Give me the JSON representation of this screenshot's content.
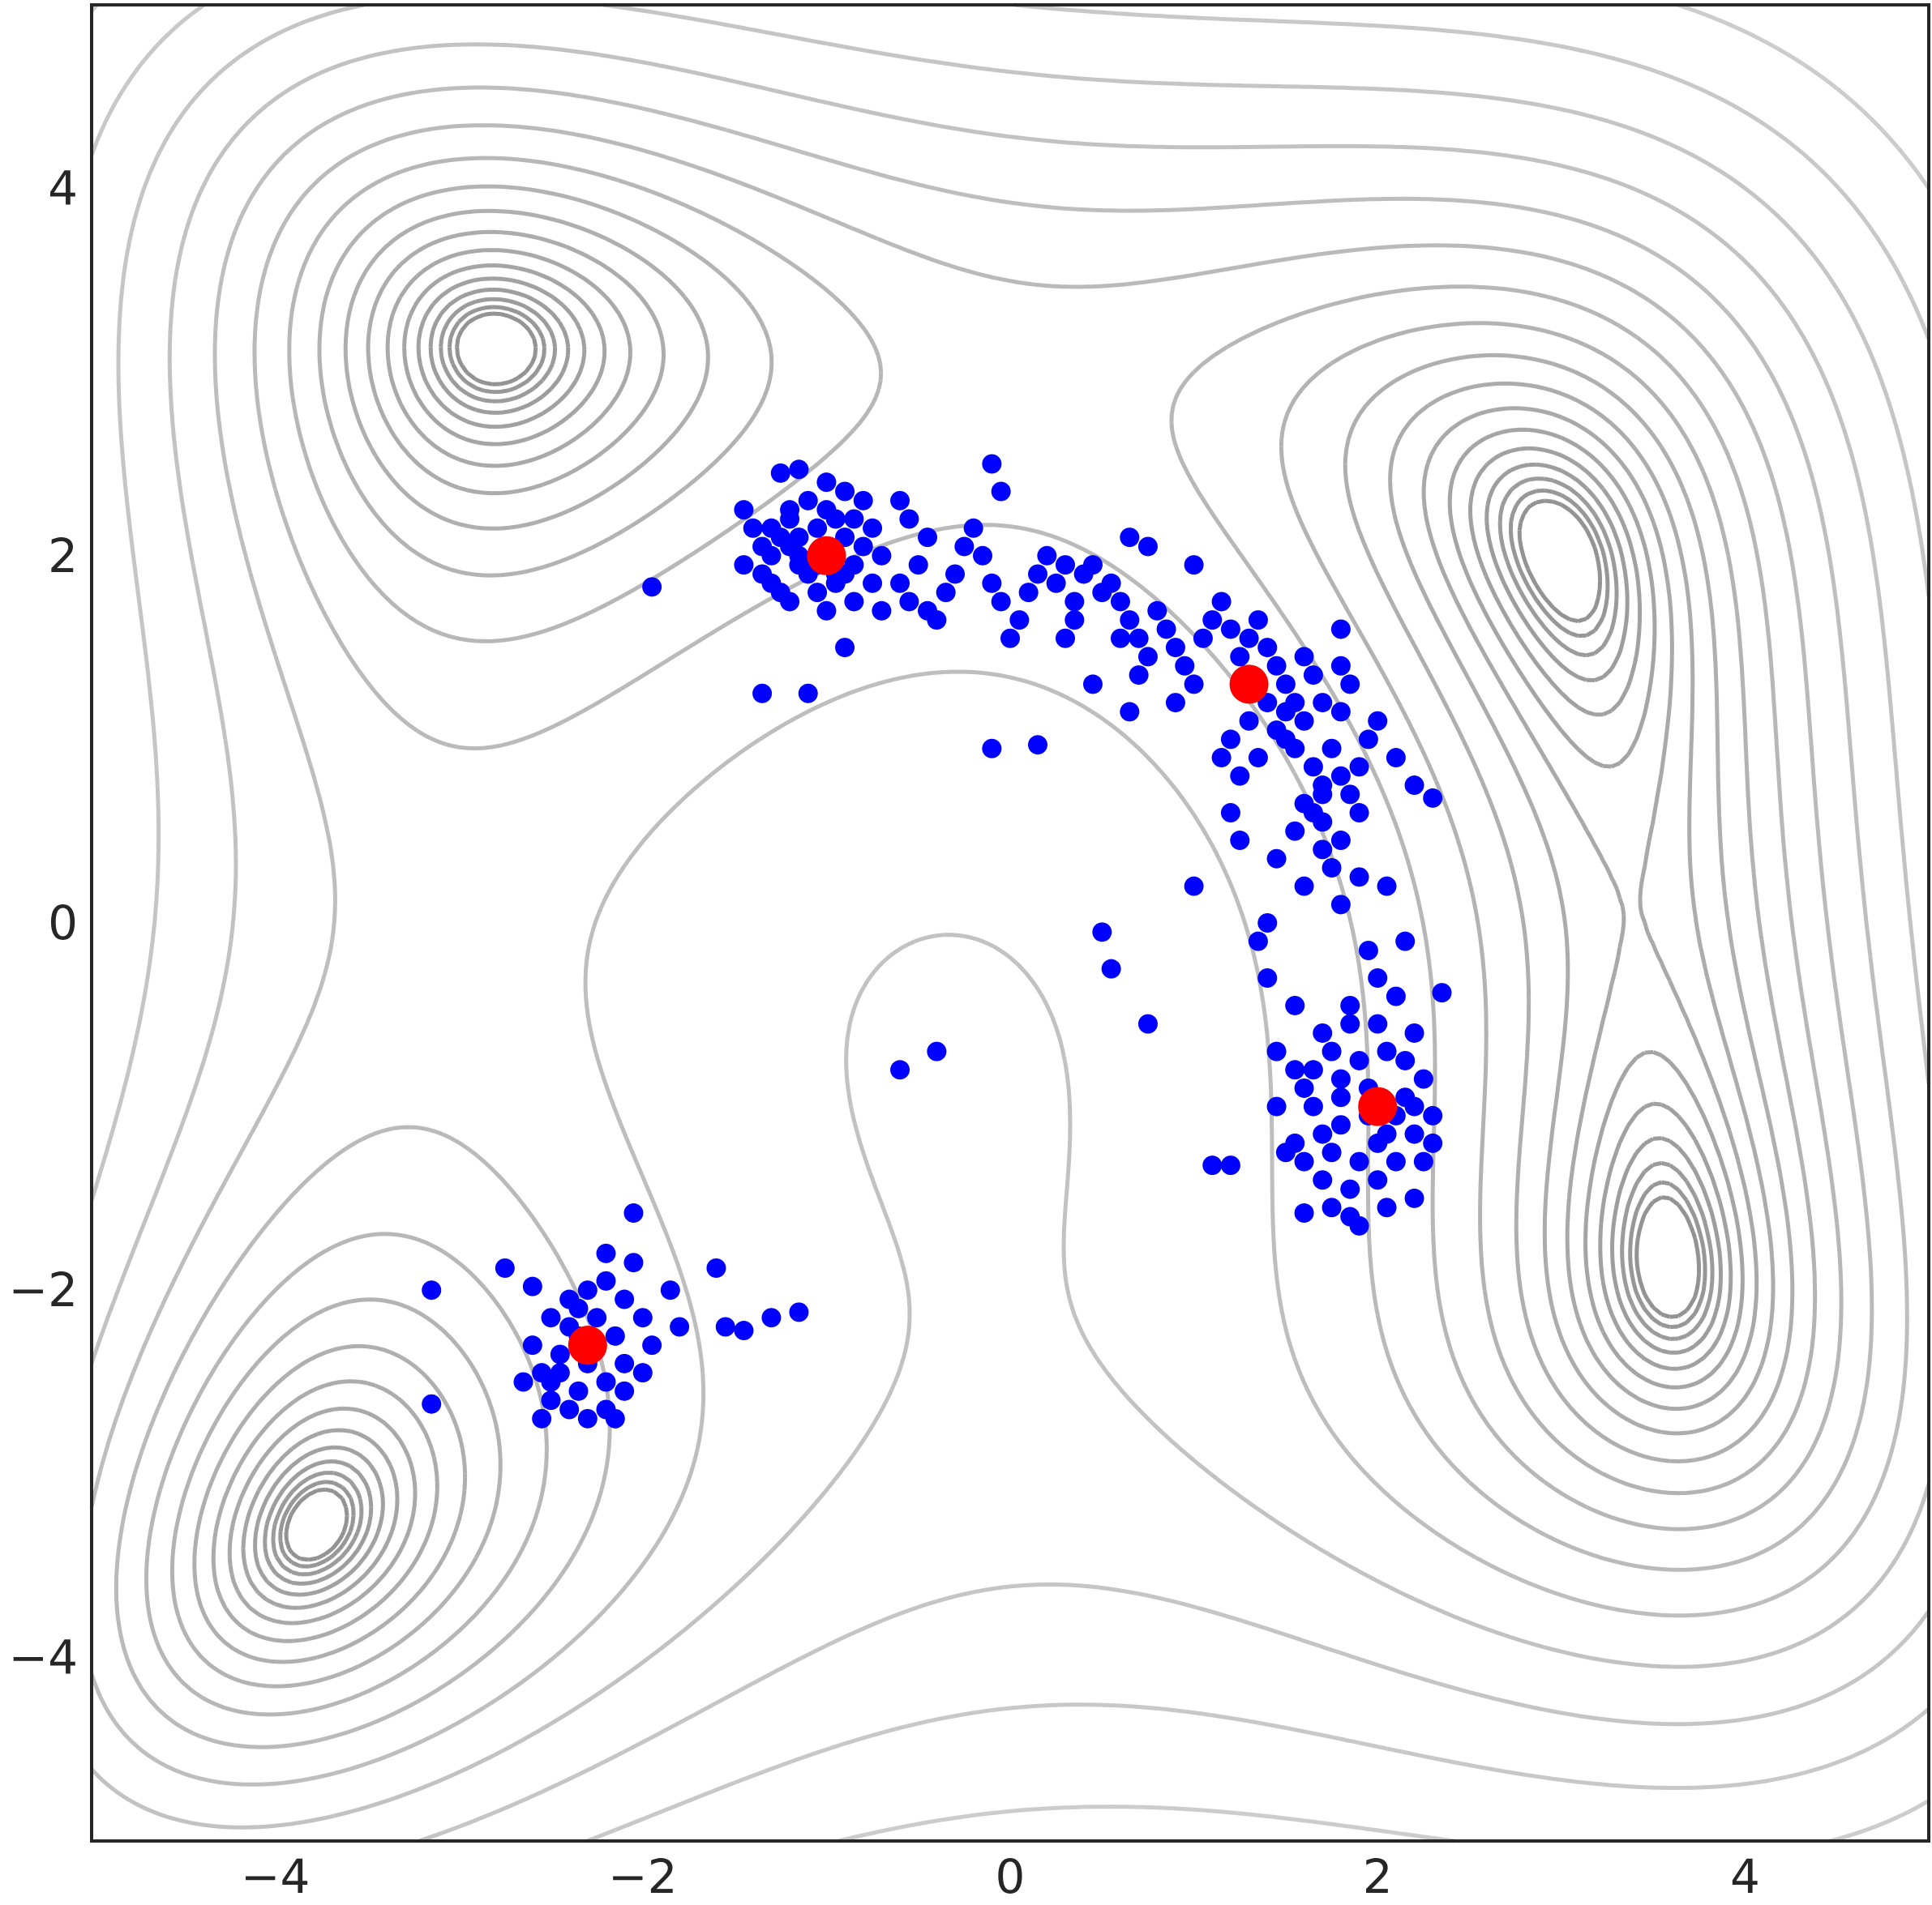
{
  "chart_data": {
    "type": "scatter",
    "title": "",
    "xlabel": "",
    "ylabel": "",
    "xlim": [
      -5,
      5
    ],
    "ylim": [
      -5,
      5
    ],
    "grid": false,
    "xticks": [
      -4,
      -2,
      0,
      2,
      4
    ],
    "yticks": [
      -4,
      -2,
      0,
      2,
      4
    ],
    "xtick_labels": [
      "−4",
      "−2",
      "0",
      "2",
      "4"
    ],
    "ytick_labels": [
      "−4",
      "−2",
      "0",
      "2",
      "4"
    ],
    "background_contours": "Himmelblau function level curves (grey)",
    "colors": {
      "samples": "#0000ff",
      "minima": "#ff0000",
      "contours": "#808080",
      "axes": "#262626"
    },
    "minima": [
      {
        "x": -1.0,
        "y": 2.0
      },
      {
        "x": 1.3,
        "y": 1.3
      },
      {
        "x": 2.0,
        "y": -1.0
      },
      {
        "x": -2.3,
        "y": -2.3
      }
    ],
    "series": [
      {
        "points": [
          [
            -0.4,
            -0.7
          ],
          [
            -0.6,
            -0.8
          ],
          [
            0.5,
            -0.05
          ],
          [
            0.55,
            -0.25
          ],
          [
            0.75,
            -0.55
          ],
          [
            1.0,
            0.2
          ],
          [
            -1.35,
            1.25
          ],
          [
            -1.1,
            1.25
          ],
          [
            -0.1,
            0.95
          ],
          [
            0.15,
            0.97
          ],
          [
            -0.1,
            2.5
          ],
          [
            -0.05,
            2.35
          ],
          [
            -1.95,
            1.83
          ],
          [
            -1.15,
            2.47
          ],
          [
            -1.25,
            2.45
          ],
          [
            2.3,
            0.68
          ],
          [
            2.2,
            0.75
          ],
          [
            2.35,
            -0.38
          ],
          [
            1.1,
            -1.32
          ],
          [
            1.2,
            -1.32
          ],
          [
            1.6,
            -1.58
          ],
          [
            -3.15,
            -2.0
          ],
          [
            -3.15,
            -2.62
          ],
          [
            -2.75,
            -1.88
          ],
          [
            -2.6,
            -1.98
          ],
          [
            -2.05,
            -1.58
          ],
          [
            -1.6,
            -1.88
          ],
          [
            -1.55,
            -2.2
          ],
          [
            -1.45,
            -2.22
          ],
          [
            -1.3,
            -2.15
          ],
          [
            -1.15,
            -2.12
          ],
          [
            0.3,
            1.55
          ],
          [
            0.6,
            1.55
          ],
          [
            0.3,
            1.95
          ],
          [
            0.0,
            1.55
          ],
          [
            0.5,
            1.8
          ],
          [
            -0.4,
            1.65
          ],
          [
            -0.7,
            1.7
          ],
          [
            -0.9,
            1.5
          ],
          [
            1.5,
            1.0
          ],
          [
            1.7,
            0.75
          ],
          [
            1.45,
            0.35
          ],
          [
            1.8,
            0.1
          ],
          [
            2.15,
            -0.1
          ],
          [
            2.0,
            -0.3
          ],
          [
            1.55,
            -0.45
          ],
          [
            1.45,
            -0.7
          ],
          [
            1.6,
            -0.9
          ],
          [
            2.3,
            -1.2
          ],
          [
            1.0,
            1.95
          ],
          [
            0.75,
            2.05
          ],
          [
            0.65,
            2.1
          ],
          [
            0.35,
            1.65
          ],
          [
            0.45,
            1.3
          ],
          [
            0.65,
            1.15
          ],
          [
            0.9,
            1.2
          ],
          [
            1.2,
            0.6
          ],
          [
            1.25,
            0.45
          ],
          [
            1.8,
            1.6
          ],
          [
            1.6,
            1.45
          ],
          [
            1.8,
            1.4
          ],
          [
            2.0,
            1.1
          ],
          [
            2.1,
            0.9
          ],
          [
            1.9,
            0.6
          ],
          [
            1.7,
            0.4
          ],
          [
            1.9,
            0.25
          ],
          [
            2.05,
            0.2
          ],
          [
            1.6,
            0.2
          ],
          [
            1.4,
            0.0
          ],
          [
            1.35,
            -0.1
          ],
          [
            1.4,
            -0.3
          ],
          [
            2.2,
            -0.6
          ],
          [
            2.25,
            -0.85
          ],
          [
            2.3,
            -1.05
          ],
          [
            2.25,
            -1.3
          ],
          [
            2.2,
            -1.5
          ],
          [
            2.05,
            -1.55
          ],
          [
            1.9,
            -1.65
          ],
          [
            1.85,
            -1.6
          ],
          [
            1.75,
            -1.55
          ],
          [
            1.7,
            -1.4
          ],
          [
            1.6,
            -1.3
          ],
          [
            1.5,
            -1.25
          ],
          [
            1.45,
            -1.0
          ],
          [
            1.55,
            -0.8
          ],
          [
            1.7,
            -0.6
          ],
          [
            1.85,
            -0.45
          ],
          [
            1.95,
            -0.15
          ],
          [
            2.1,
            -0.4
          ],
          [
            2.05,
            -0.7
          ],
          [
            1.95,
            -0.9
          ],
          [
            1.8,
            -1.1
          ],
          [
            1.9,
            -1.3
          ],
          [
            2.1,
            -1.3
          ],
          [
            2.2,
            -1.15
          ],
          [
            2.1,
            -1.05
          ],
          [
            1.8,
            -0.85
          ],
          [
            1.65,
            -1.0
          ],
          [
            1.55,
            -1.2
          ],
          [
            1.75,
            -1.25
          ],
          [
            2.0,
            -1.2
          ],
          [
            2.15,
            -0.95
          ],
          [
            1.9,
            -0.75
          ],
          [
            1.75,
            -0.7
          ],
          [
            1.85,
            -0.55
          ],
          [
            2.0,
            -0.55
          ],
          [
            2.15,
            -0.75
          ],
          [
            2.2,
            -1.0
          ],
          [
            2.0,
            -1.4
          ],
          [
            1.85,
            -1.45
          ],
          [
            1.7,
            -1.15
          ],
          [
            1.65,
            -0.8
          ],
          [
            2.05,
            -1.15
          ],
          [
            1.95,
            -1.05
          ],
          [
            1.8,
            -0.95
          ],
          [
            -1.45,
            2.25
          ],
          [
            -1.4,
            2.15
          ],
          [
            -1.35,
            2.05
          ],
          [
            -1.45,
            1.95
          ],
          [
            -1.3,
            1.85
          ],
          [
            -1.2,
            1.75
          ],
          [
            -1.0,
            1.7
          ],
          [
            -0.85,
            1.75
          ],
          [
            -0.75,
            1.85
          ],
          [
            -0.7,
            2.0
          ],
          [
            -0.75,
            2.15
          ],
          [
            -0.8,
            2.3
          ],
          [
            -0.9,
            2.35
          ],
          [
            -1.0,
            2.4
          ],
          [
            -1.1,
            2.3
          ],
          [
            -1.2,
            2.25
          ],
          [
            -1.25,
            2.1
          ],
          [
            -1.15,
            2.0
          ],
          [
            -1.1,
            1.9
          ],
          [
            -0.95,
            1.85
          ],
          [
            -0.85,
            1.95
          ],
          [
            -0.9,
            2.1
          ],
          [
            -0.95,
            2.2
          ],
          [
            -1.05,
            2.15
          ],
          [
            -1.15,
            2.1
          ],
          [
            -1.3,
            2.0
          ],
          [
            -1.35,
            1.9
          ],
          [
            -1.25,
            1.8
          ],
          [
            -1.05,
            1.8
          ],
          [
            -0.9,
            1.9
          ],
          [
            -0.8,
            2.05
          ],
          [
            -0.85,
            2.2
          ],
          [
            -1.0,
            2.25
          ],
          [
            -1.2,
            2.2
          ],
          [
            -1.3,
            2.15
          ],
          [
            -1.0,
            2.05
          ],
          [
            -1.05,
            1.95
          ],
          [
            -1.15,
            1.95
          ],
          [
            -0.95,
            1.9
          ],
          [
            -1.2,
            2.05
          ],
          [
            -0.6,
            2.3
          ],
          [
            -0.55,
            2.2
          ],
          [
            -0.45,
            2.1
          ],
          [
            -0.5,
            1.95
          ],
          [
            -0.6,
            1.85
          ],
          [
            -0.55,
            1.75
          ],
          [
            -0.45,
            1.7
          ],
          [
            -0.35,
            1.8
          ],
          [
            -0.3,
            1.9
          ],
          [
            -0.25,
            2.05
          ],
          [
            -0.2,
            2.15
          ],
          [
            -0.15,
            2.0
          ],
          [
            -0.1,
            1.85
          ],
          [
            -0.05,
            1.75
          ],
          [
            0.05,
            1.65
          ],
          [
            0.1,
            1.8
          ],
          [
            0.15,
            1.9
          ],
          [
            0.2,
            2.0
          ],
          [
            0.25,
            1.85
          ],
          [
            0.35,
            1.75
          ],
          [
            0.4,
            1.9
          ],
          [
            0.45,
            1.95
          ],
          [
            0.55,
            1.85
          ],
          [
            0.6,
            1.75
          ],
          [
            0.65,
            1.65
          ],
          [
            0.7,
            1.55
          ],
          [
            0.75,
            1.45
          ],
          [
            0.7,
            1.35
          ],
          [
            0.8,
            1.7
          ],
          [
            0.85,
            1.6
          ],
          [
            0.9,
            1.5
          ],
          [
            0.95,
            1.4
          ],
          [
            1.0,
            1.3
          ],
          [
            1.05,
            1.55
          ],
          [
            1.1,
            1.65
          ],
          [
            1.15,
            1.75
          ],
          [
            1.2,
            1.6
          ],
          [
            1.25,
            1.45
          ],
          [
            1.3,
            1.55
          ],
          [
            1.35,
            1.65
          ],
          [
            1.4,
            1.5
          ],
          [
            1.45,
            1.4
          ],
          [
            1.5,
            1.3
          ],
          [
            1.55,
            1.2
          ],
          [
            1.6,
            1.1
          ],
          [
            1.4,
            1.2
          ],
          [
            1.3,
            1.1
          ],
          [
            1.2,
            1.0
          ],
          [
            1.15,
            0.9
          ],
          [
            1.25,
            0.8
          ],
          [
            1.35,
            0.9
          ],
          [
            1.45,
            1.05
          ],
          [
            1.55,
            0.95
          ],
          [
            1.65,
            0.85
          ],
          [
            1.75,
            0.95
          ],
          [
            1.8,
            1.15
          ],
          [
            1.85,
            1.3
          ],
          [
            1.7,
            1.2
          ],
          [
            1.65,
            1.35
          ],
          [
            1.5,
            1.15
          ],
          [
            1.6,
            0.65
          ],
          [
            1.7,
            0.55
          ],
          [
            1.8,
            0.45
          ],
          [
            1.75,
            0.3
          ],
          [
            1.65,
            0.6
          ],
          [
            1.55,
            0.5
          ],
          [
            1.85,
            0.7
          ],
          [
            1.9,
            0.85
          ],
          [
            1.95,
            1.0
          ],
          [
            1.8,
            0.8
          ],
          [
            1.7,
            0.7
          ],
          [
            -2.5,
            -2.5
          ],
          [
            -2.45,
            -2.35
          ],
          [
            -2.4,
            -2.2
          ],
          [
            -2.35,
            -2.1
          ],
          [
            -2.3,
            -2.0
          ],
          [
            -2.2,
            -1.95
          ],
          [
            -2.1,
            -2.05
          ],
          [
            -2.0,
            -2.15
          ],
          [
            -1.95,
            -2.3
          ],
          [
            -2.0,
            -2.45
          ],
          [
            -2.1,
            -2.55
          ],
          [
            -2.2,
            -2.65
          ],
          [
            -2.3,
            -2.7
          ],
          [
            -2.4,
            -2.65
          ],
          [
            -2.5,
            -2.6
          ],
          [
            -2.55,
            -2.45
          ],
          [
            -2.6,
            -2.3
          ],
          [
            -2.5,
            -2.15
          ],
          [
            -2.4,
            -2.05
          ],
          [
            -2.25,
            -2.15
          ],
          [
            -2.15,
            -2.25
          ],
          [
            -2.1,
            -2.4
          ],
          [
            -2.2,
            -2.5
          ],
          [
            -2.35,
            -2.55
          ],
          [
            -2.45,
            -2.45
          ],
          [
            -2.3,
            -2.4
          ],
          [
            -2.25,
            -2.3
          ],
          [
            -2.35,
            -2.25
          ],
          [
            -2.2,
            -1.8
          ],
          [
            -1.85,
            -2.0
          ],
          [
            -1.8,
            -2.2
          ],
          [
            -2.05,
            -1.85
          ],
          [
            -2.55,
            -2.7
          ],
          [
            -2.65,
            -2.5
          ],
          [
            -2.15,
            -2.7
          ]
        ]
      }
    ]
  }
}
